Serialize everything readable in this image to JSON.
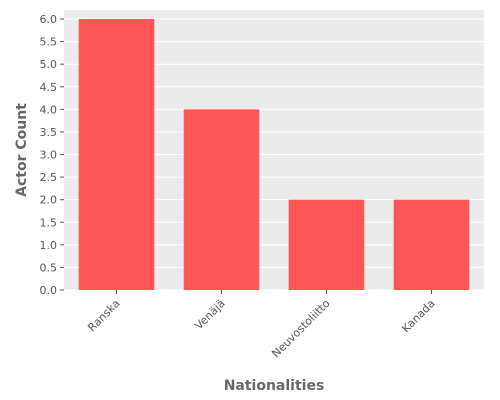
{
  "chart_data": {
    "type": "bar",
    "title": "",
    "xlabel": "Nationalities",
    "ylabel": "Actor Count",
    "categories": [
      "Ranska",
      "Venäjä",
      "Neuvostoliitto",
      "Kanada"
    ],
    "values": [
      6,
      4,
      2,
      2
    ],
    "ylim": [
      0,
      6.2
    ],
    "yticks": [
      "0.0",
      "0.5",
      "1.0",
      "1.5",
      "2.0",
      "2.5",
      "3.0",
      "3.5",
      "4.0",
      "4.5",
      "5.0",
      "5.5",
      "6.0"
    ],
    "grid": true,
    "bar_color": "#ff5555",
    "background_color": "#ebebeb",
    "grid_color": "#ffffff"
  }
}
